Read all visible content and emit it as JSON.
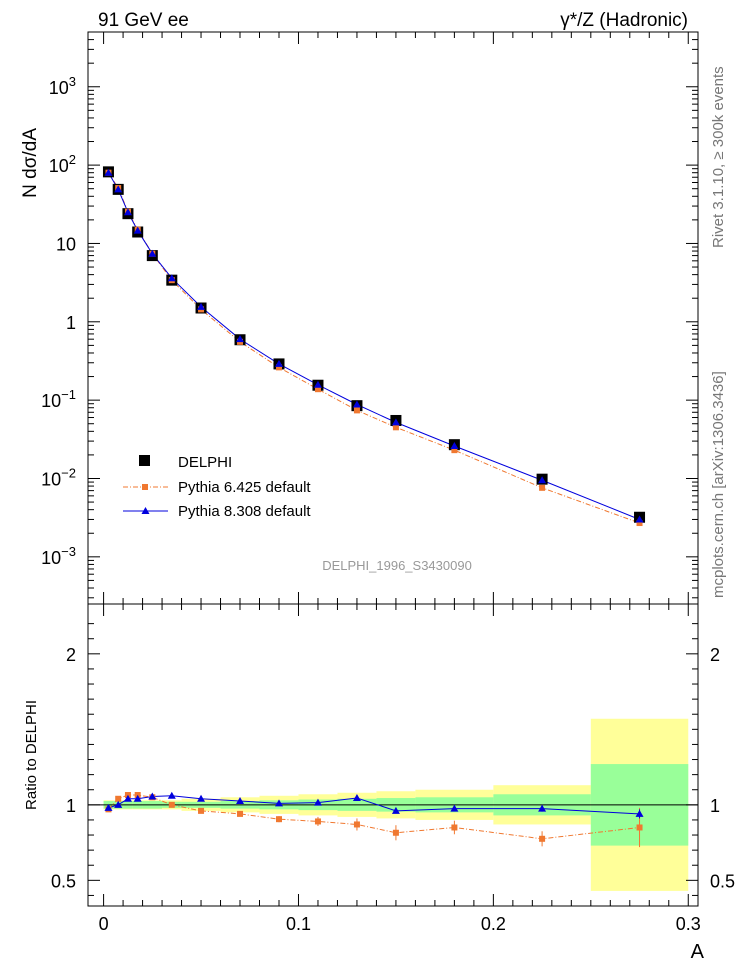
{
  "header": {
    "left_title": "91 GeV ee",
    "right_title": "γ*/Z (Hadronic)"
  },
  "side_labels": {
    "rivet": "Rivet 3.1.10, ≥ 300k events",
    "mcplots": "mcplots.cern.ch [arXiv:1306.3436]"
  },
  "analysis_id": "DELPHI_1996_S3430090",
  "colors": {
    "data": "#000000",
    "pythia6": "#f07830",
    "pythia8": "#0000dd",
    "band_inner": "#99ff99",
    "band_outer": "#ffff99"
  },
  "chart_data": [
    {
      "type": "scatter",
      "yscale": "log",
      "ylabel": "N dσ/dA",
      "xlim": [
        -0.008,
        0.305
      ],
      "ylim": [
        0.00025,
        5000
      ],
      "legend_position": "bottom-left",
      "yticks": [
        {
          "value": 0.001,
          "label": "10",
          "exp": "−3"
        },
        {
          "value": 0.01,
          "label": "10",
          "exp": "−2"
        },
        {
          "value": 0.1,
          "label": "10",
          "exp": "−1"
        },
        {
          "value": 1,
          "label": "1",
          "exp": ""
        },
        {
          "value": 10,
          "label": "10",
          "exp": ""
        },
        {
          "value": 100,
          "label": "10",
          "exp": "2"
        },
        {
          "value": 1000,
          "label": "10",
          "exp": "3"
        }
      ],
      "x": [
        0.0025,
        0.0075,
        0.0125,
        0.0175,
        0.025,
        0.035,
        0.05,
        0.07,
        0.09,
        0.11,
        0.13,
        0.15,
        0.18,
        0.225,
        0.275
      ],
      "series": [
        {
          "name": "DELPHI",
          "marker": "square",
          "values": [
            82,
            49,
            24,
            14,
            7.0,
            3.4,
            1.5,
            0.59,
            0.29,
            0.155,
            0.085,
            0.055,
            0.027,
            0.0098,
            0.0032
          ]
        },
        {
          "name": "Pythia 6.425 default",
          "marker": "small-square",
          "line": "dash-dot",
          "values": [
            80,
            51,
            25.5,
            15,
            7.4,
            3.4,
            1.44,
            0.555,
            0.262,
            0.138,
            0.074,
            0.045,
            0.023,
            0.0076,
            0.0027
          ]
        },
        {
          "name": "Pythia 8.308 default",
          "marker": "triangle",
          "line": "solid",
          "values": [
            80,
            49,
            25,
            14.6,
            7.4,
            3.6,
            1.55,
            0.6,
            0.29,
            0.157,
            0.088,
            0.052,
            0.026,
            0.0095,
            0.003
          ]
        }
      ]
    },
    {
      "type": "scatter",
      "ylabel": "Ratio to DELPHI",
      "xlabel": "A",
      "xlim": [
        -0.008,
        0.305
      ],
      "ylim": [
        0.33,
        2.33
      ],
      "yticks": [
        0.5,
        1,
        2
      ],
      "xticks": [
        0,
        0.1,
        0.2,
        0.3
      ],
      "band_bins": [
        {
          "lo": 0.0,
          "hi": 0.005,
          "inner": 0.025,
          "outer": 0.03
        },
        {
          "lo": 0.005,
          "hi": 0.01,
          "inner": 0.025,
          "outer": 0.03
        },
        {
          "lo": 0.01,
          "hi": 0.015,
          "inner": 0.025,
          "outer": 0.03
        },
        {
          "lo": 0.015,
          "hi": 0.02,
          "inner": 0.025,
          "outer": 0.03
        },
        {
          "lo": 0.02,
          "hi": 0.03,
          "inner": 0.025,
          "outer": 0.03
        },
        {
          "lo": 0.03,
          "hi": 0.04,
          "inner": 0.02,
          "outer": 0.03
        },
        {
          "lo": 0.04,
          "hi": 0.06,
          "inner": 0.02,
          "outer": 0.04
        },
        {
          "lo": 0.06,
          "hi": 0.08,
          "inner": 0.025,
          "outer": 0.05
        },
        {
          "lo": 0.08,
          "hi": 0.1,
          "inner": 0.03,
          "outer": 0.06
        },
        {
          "lo": 0.1,
          "hi": 0.12,
          "inner": 0.035,
          "outer": 0.07
        },
        {
          "lo": 0.12,
          "hi": 0.14,
          "inner": 0.04,
          "outer": 0.08
        },
        {
          "lo": 0.14,
          "hi": 0.16,
          "inner": 0.045,
          "outer": 0.09
        },
        {
          "lo": 0.16,
          "hi": 0.2,
          "inner": 0.05,
          "outer": 0.1
        },
        {
          "lo": 0.2,
          "hi": 0.25,
          "inner": 0.07,
          "outer": 0.13
        },
        {
          "lo": 0.25,
          "hi": 0.3,
          "inner": 0.27,
          "outer": 0.57
        }
      ],
      "series": [
        {
          "name": "Pythia 6.425 default",
          "values": [
            0.97,
            1.04,
            1.065,
            1.065,
            1.05,
            1.0,
            0.96,
            0.94,
            0.905,
            0.89,
            0.87,
            0.815,
            0.85,
            0.775,
            0.85
          ],
          "errors": [
            0.01,
            0.01,
            0.01,
            0.01,
            0.01,
            0.01,
            0.01,
            0.015,
            0.02,
            0.03,
            0.04,
            0.05,
            0.045,
            0.05,
            0.13
          ]
        },
        {
          "name": "Pythia 8.308 default",
          "values": [
            0.98,
            1.0,
            1.04,
            1.04,
            1.055,
            1.06,
            1.04,
            1.025,
            1.01,
            1.015,
            1.045,
            0.96,
            0.975,
            0.975,
            0.94
          ],
          "errors": [
            0.005,
            0.005,
            0.005,
            0.005,
            0.005,
            0.005,
            0.005,
            0.008,
            0.01,
            0.012,
            0.015,
            0.015,
            0.015,
            0.02,
            0.03
          ]
        }
      ]
    }
  ]
}
